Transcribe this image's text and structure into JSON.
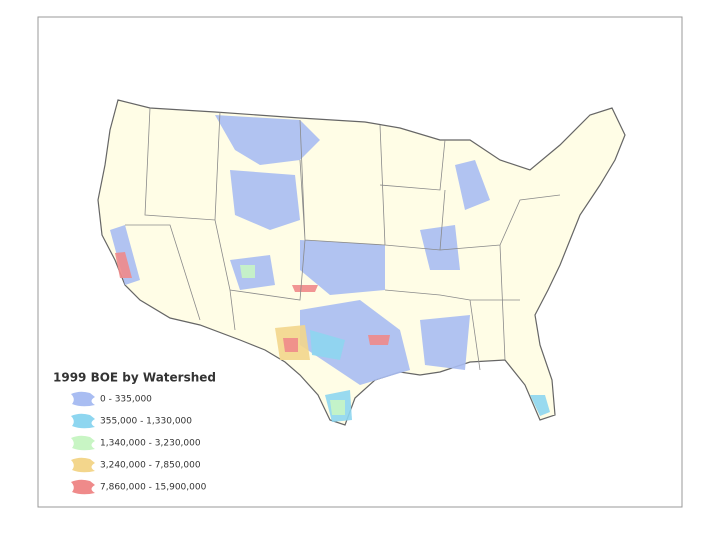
{
  "legend": {
    "title": "1999 BOE by Watershed",
    "items": [
      {
        "label": "0 - 335,000",
        "color": "#a9bdf2"
      },
      {
        "label": "355,000 - 1,330,000",
        "color": "#8ed6f0"
      },
      {
        "label": "1,340,000 - 3,230,000",
        "color": "#c8f5c4"
      },
      {
        "label": "3,240,000 - 7,850,000",
        "color": "#f3d68c"
      },
      {
        "label": "7,860,000 - 15,900,000",
        "color": "#ef8a8a"
      }
    ]
  }
}
